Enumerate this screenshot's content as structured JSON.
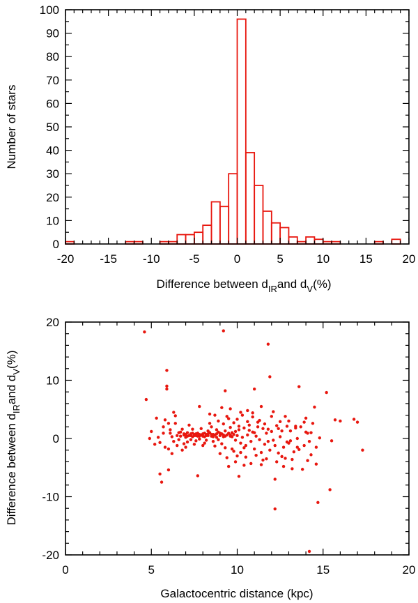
{
  "chart_data": [
    {
      "type": "bar",
      "subtype": "histogram",
      "color": "#e8170f",
      "xlim": [
        -20,
        20
      ],
      "ylim": [
        0,
        100
      ],
      "xticks": [
        -20,
        -15,
        -10,
        -5,
        0,
        5,
        10,
        15,
        20
      ],
      "yticks": [
        0,
        10,
        20,
        30,
        40,
        50,
        60,
        70,
        80,
        90,
        100
      ],
      "xlabel": {
        "prefix": "Difference between d",
        "sub1": "IR",
        "middle": "and d",
        "sub2": "V",
        "suffix": "(%)"
      },
      "ylabel": "Number of stars",
      "bins": [
        {
          "x0": -20,
          "x1": -19,
          "count": 1
        },
        {
          "x0": -13,
          "x1": -12,
          "count": 1
        },
        {
          "x0": -12,
          "x1": -11,
          "count": 1
        },
        {
          "x0": -9,
          "x1": -8,
          "count": 1
        },
        {
          "x0": -8,
          "x1": -7,
          "count": 1
        },
        {
          "x0": -7,
          "x1": -6,
          "count": 4
        },
        {
          "x0": -6,
          "x1": -5,
          "count": 4
        },
        {
          "x0": -5,
          "x1": -4,
          "count": 5
        },
        {
          "x0": -4,
          "x1": -3,
          "count": 8
        },
        {
          "x0": -3,
          "x1": -2,
          "count": 18
        },
        {
          "x0": -2,
          "x1": -1,
          "count": 16
        },
        {
          "x0": -1,
          "x1": 0,
          "count": 30
        },
        {
          "x0": 0,
          "x1": 1,
          "count": 96
        },
        {
          "x0": 1,
          "x1": 2,
          "count": 39
        },
        {
          "x0": 2,
          "x1": 3,
          "count": 25
        },
        {
          "x0": 3,
          "x1": 4,
          "count": 14
        },
        {
          "x0": 4,
          "x1": 5,
          "count": 9
        },
        {
          "x0": 5,
          "x1": 6,
          "count": 7
        },
        {
          "x0": 6,
          "x1": 7,
          "count": 3
        },
        {
          "x0": 7,
          "x1": 8,
          "count": 1
        },
        {
          "x0": 8,
          "x1": 9,
          "count": 3
        },
        {
          "x0": 9,
          "x1": 10,
          "count": 2
        },
        {
          "x0": 10,
          "x1": 11,
          "count": 1
        },
        {
          "x0": 11,
          "x1": 12,
          "count": 1
        },
        {
          "x0": 16,
          "x1": 17,
          "count": 1
        },
        {
          "x0": 18,
          "x1": 19,
          "count": 2
        }
      ]
    },
    {
      "type": "scatter",
      "color": "#e8170f",
      "xlim": [
        0,
        20
      ],
      "ylim": [
        -20,
        20
      ],
      "xticks": [
        0,
        5,
        10,
        15,
        20
      ],
      "yticks": [
        -20,
        -10,
        0,
        10,
        20
      ],
      "xlabel": "Galactocentric distance (kpc)",
      "ylabel": {
        "prefix": "Difference between d",
        "sub1": "IR",
        "middle": "and d",
        "sub2": "V",
        "suffix": "(%)"
      },
      "points": [
        [
          4.6,
          18.3
        ],
        [
          9.2,
          18.5
        ],
        [
          11.8,
          16.2
        ],
        [
          5.9,
          11.7
        ],
        [
          5.9,
          9.0
        ],
        [
          5.9,
          8.5
        ],
        [
          4.7,
          6.7
        ],
        [
          9.3,
          8.2
        ],
        [
          11.0,
          8.5
        ],
        [
          11.9,
          10.6
        ],
        [
          13.6,
          8.9
        ],
        [
          15.2,
          7.9
        ],
        [
          5.3,
          3.5
        ],
        [
          5.8,
          3.2
        ],
        [
          6.3,
          4.5
        ],
        [
          6.4,
          3.9
        ],
        [
          7.8,
          5.5
        ],
        [
          8.4,
          4.2
        ],
        [
          9.1,
          5.3
        ],
        [
          9.6,
          5.1
        ],
        [
          10.2,
          4.5
        ],
        [
          10.6,
          4.8
        ],
        [
          11.4,
          5.5
        ],
        [
          12.1,
          4.6
        ],
        [
          12.8,
          3.8
        ],
        [
          14.0,
          3.5
        ],
        [
          14.5,
          5.4
        ],
        [
          15.7,
          3.2
        ],
        [
          16.8,
          3.3
        ],
        [
          17.0,
          2.8
        ],
        [
          5.5,
          -6.1
        ],
        [
          5.6,
          -7.5
        ],
        [
          6.0,
          -5.4
        ],
        [
          7.7,
          -6.4
        ],
        [
          10.1,
          -6.5
        ],
        [
          11.4,
          -4.5
        ],
        [
          12.2,
          -7.0
        ],
        [
          12.2,
          -12.1
        ],
        [
          13.2,
          -5.2
        ],
        [
          13.8,
          -5.3
        ],
        [
          14.6,
          -4.4
        ],
        [
          14.7,
          -11.0
        ],
        [
          15.4,
          -8.8
        ],
        [
          14.2,
          -19.4
        ],
        [
          17.3,
          -2.0
        ],
        [
          14.6,
          -1.5
        ],
        [
          12.8,
          -3.4
        ],
        [
          12.6,
          -3.1
        ],
        [
          5.7,
          2.0
        ],
        [
          6.1,
          1.5
        ],
        [
          6.1,
          0.9
        ],
        [
          6.2,
          0.3
        ],
        [
          6.3,
          -0.5
        ],
        [
          6.5,
          -1.2
        ],
        [
          6.0,
          -1.8
        ],
        [
          6.7,
          1.1
        ],
        [
          6.9,
          0.6
        ],
        [
          7.0,
          0.2
        ],
        [
          7.1,
          1.0
        ],
        [
          7.2,
          0.5
        ],
        [
          7.3,
          0.8
        ],
        [
          7.4,
          0.3
        ],
        [
          7.5,
          0.7
        ],
        [
          7.6,
          0.5
        ],
        [
          7.7,
          0.9
        ],
        [
          7.8,
          0.4
        ],
        [
          7.9,
          0.6
        ],
        [
          8.0,
          0.8
        ],
        [
          8.1,
          0.3
        ],
        [
          8.2,
          0.7
        ],
        [
          8.3,
          0.5
        ],
        [
          8.4,
          1.0
        ],
        [
          8.5,
          0.4
        ],
        [
          8.6,
          0.7
        ],
        [
          8.7,
          0.6
        ],
        [
          8.8,
          0.2
        ],
        [
          8.9,
          1.1
        ],
        [
          9.0,
          0.5
        ],
        [
          9.1,
          0.8
        ],
        [
          9.2,
          0.3
        ],
        [
          9.3,
          1.3
        ],
        [
          9.4,
          0.6
        ],
        [
          9.5,
          0.9
        ],
        [
          9.6,
          0.4
        ],
        [
          9.7,
          1.0
        ],
        [
          9.8,
          0.7
        ],
        [
          9.9,
          -0.3
        ],
        [
          10.0,
          0.5
        ],
        [
          10.1,
          1.5
        ],
        [
          10.2,
          -0.8
        ],
        [
          10.3,
          0.2
        ],
        [
          10.4,
          1.8
        ],
        [
          10.5,
          -1.2
        ],
        [
          10.6,
          0.6
        ],
        [
          10.7,
          2.3
        ],
        [
          10.8,
          -0.5
        ],
        [
          10.9,
          1.1
        ],
        [
          11.0,
          -1.8
        ],
        [
          11.1,
          0.4
        ],
        [
          11.2,
          2.8
        ],
        [
          11.3,
          -0.2
        ],
        [
          11.5,
          1.7
        ],
        [
          11.6,
          -1.0
        ],
        [
          11.7,
          0.9
        ],
        [
          11.8,
          -0.5
        ],
        [
          11.9,
          -2.0
        ],
        [
          12.0,
          1.2
        ],
        [
          12.1,
          -0.3
        ],
        [
          12.3,
          2.2
        ],
        [
          12.4,
          -2.5
        ],
        [
          12.5,
          0.3
        ],
        [
          12.7,
          -1.5
        ],
        [
          12.9,
          2.1
        ],
        [
          13.0,
          -0.8
        ],
        [
          13.1,
          1.3
        ],
        [
          13.3,
          -2.3
        ],
        [
          13.5,
          0.0
        ],
        [
          13.7,
          2.0
        ],
        [
          13.9,
          -1.2
        ],
        [
          14.1,
          0.9
        ],
        [
          14.3,
          -2.8
        ],
        [
          14.4,
          2.6
        ],
        [
          14.8,
          0.1
        ],
        [
          6.4,
          2.6
        ],
        [
          6.8,
          -2.0
        ],
        [
          7.0,
          -1.5
        ],
        [
          7.2,
          2.3
        ],
        [
          7.5,
          -1.0
        ],
        [
          7.9,
          1.7
        ],
        [
          8.1,
          -0.8
        ],
        [
          8.5,
          2.0
        ],
        [
          8.7,
          -1.3
        ],
        [
          8.9,
          3.0
        ],
        [
          9.0,
          -2.6
        ],
        [
          9.2,
          2.5
        ],
        [
          9.4,
          -3.3
        ],
        [
          9.5,
          3.4
        ],
        [
          9.7,
          -1.8
        ],
        [
          9.8,
          2.7
        ],
        [
          9.9,
          -4.0
        ],
        [
          10.0,
          3.3
        ],
        [
          10.2,
          -2.4
        ],
        [
          10.3,
          4.0
        ],
        [
          10.5,
          -3.2
        ],
        [
          10.6,
          2.9
        ],
        [
          10.8,
          -4.3
        ],
        [
          10.9,
          3.7
        ],
        [
          11.1,
          -2.9
        ],
        [
          11.3,
          3.1
        ],
        [
          11.6,
          2.5
        ],
        [
          11.7,
          -3.5
        ],
        [
          12.0,
          3.8
        ],
        [
          12.3,
          -4.0
        ],
        [
          12.5,
          2.9
        ],
        [
          12.7,
          -4.8
        ],
        [
          13.0,
          3.0
        ],
        [
          13.2,
          -3.6
        ],
        [
          13.4,
          1.8
        ],
        [
          13.6,
          -1.9
        ],
        [
          13.9,
          2.8
        ],
        [
          14.1,
          -3.8
        ],
        [
          14.3,
          1.0
        ],
        [
          5.4,
          0.2
        ],
        [
          5.5,
          -0.7
        ],
        [
          5.7,
          0.9
        ],
        [
          5.8,
          -1.5
        ],
        [
          6.0,
          2.6
        ],
        [
          6.2,
          -2.6
        ],
        [
          6.6,
          -0.2
        ],
        [
          6.8,
          1.6
        ],
        [
          7.1,
          -0.6
        ],
        [
          7.4,
          1.6
        ],
        [
          7.6,
          -0.4
        ],
        [
          8.0,
          -1.2
        ],
        [
          8.3,
          1.3
        ],
        [
          8.6,
          -0.5
        ],
        [
          8.8,
          1.5
        ],
        [
          9.1,
          -0.9
        ],
        [
          9.3,
          -1.6
        ],
        [
          9.6,
          1.9
        ],
        [
          9.8,
          -2.2
        ],
        [
          10.1,
          2.1
        ],
        [
          10.4,
          -1.6
        ],
        [
          10.7,
          1.4
        ],
        [
          11.0,
          1.0
        ],
        [
          11.4,
          -2.4
        ],
        [
          11.8,
          1.6
        ],
        [
          12.2,
          -1.2
        ],
        [
          12.6,
          1.3
        ],
        [
          13.1,
          -0.4
        ],
        [
          13.5,
          -1.5
        ],
        [
          14.0,
          1.1
        ],
        [
          4.9,
          0.0
        ],
        [
          5.0,
          1.2
        ],
        [
          5.2,
          -1.0
        ],
        [
          6.9,
          -0.9
        ],
        [
          7.3,
          -0.2
        ],
        [
          7.8,
          -0.1
        ],
        [
          8.2,
          -0.3
        ],
        [
          8.4,
          2.6
        ],
        [
          8.9,
          -0.2
        ],
        [
          9.4,
          3.8
        ],
        [
          9.9,
          1.2
        ],
        [
          10.4,
          -4.6
        ],
        [
          10.9,
          4.4
        ],
        [
          11.5,
          -3.7
        ],
        [
          12.4,
          1.7
        ],
        [
          12.9,
          -0.6
        ],
        [
          13.4,
          2.1
        ],
        [
          14.2,
          -0.5
        ],
        [
          15.5,
          -0.4
        ],
        [
          16.0,
          3.0
        ],
        [
          9.5,
          -4.8
        ],
        [
          8.7,
          4.0
        ],
        [
          10.0,
          -3.0
        ],
        [
          11.2,
          2.0
        ],
        [
          6.5,
          0.5
        ],
        [
          6.6,
          1.0
        ],
        [
          6.7,
          0.4
        ],
        [
          6.9,
          0.8
        ],
        [
          7.0,
          0.7
        ],
        [
          7.1,
          0.4
        ],
        [
          7.3,
          0.5
        ],
        [
          7.4,
          0.9
        ],
        [
          7.5,
          0.5
        ],
        [
          7.6,
          0.8
        ],
        [
          7.7,
          0.4
        ],
        [
          7.8,
          0.7
        ],
        [
          8.0,
          0.4
        ],
        [
          8.1,
          0.9
        ],
        [
          8.2,
          0.5
        ],
        [
          8.3,
          0.8
        ],
        [
          8.5,
          0.7
        ],
        [
          8.6,
          0.3
        ],
        [
          8.8,
          0.8
        ],
        [
          9.0,
          0.9
        ],
        [
          9.2,
          0.6
        ],
        [
          9.3,
          0.4
        ],
        [
          9.6,
          0.6
        ],
        [
          9.7,
          0.3
        ]
      ]
    }
  ]
}
